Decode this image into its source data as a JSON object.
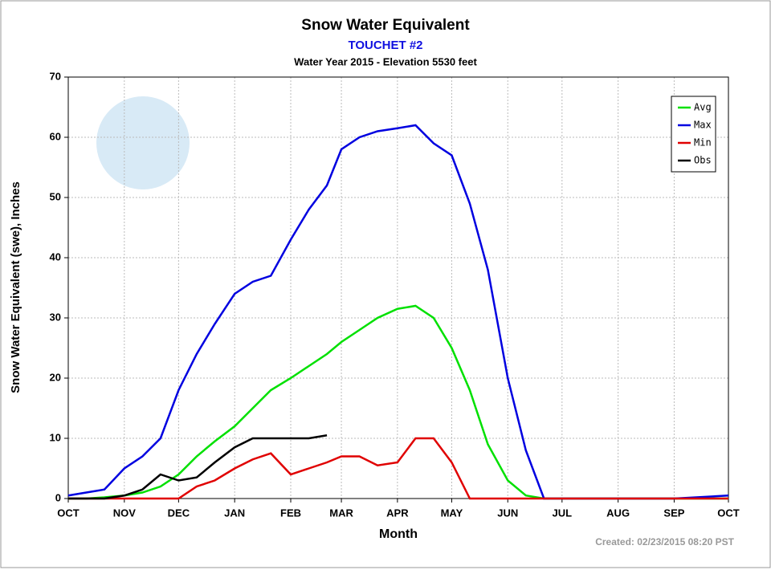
{
  "chart_data": {
    "type": "line",
    "title": "Snow Water Equivalent",
    "subtitle": "TOUCHET #2",
    "subtitle2": "Water Year 2015 -  Elevation 5530 feet",
    "x_label": "Month",
    "y_label": "Snow Water Equivalent (swe),  Inches",
    "footnote": "Created: 02/23/2015 08:20 PST",
    "x": [
      0,
      10,
      20,
      31,
      41,
      51,
      61,
      71,
      81,
      92,
      102,
      112,
      123,
      133,
      143,
      151,
      161,
      171,
      182,
      192,
      202,
      212,
      222,
      232,
      243,
      253,
      263,
      273,
      304,
      335,
      365
    ],
    "xlim": [
      0,
      365
    ],
    "xticks": [
      {
        "value": 0,
        "label": "OCT"
      },
      {
        "value": 31,
        "label": "NOV"
      },
      {
        "value": 61,
        "label": "DEC"
      },
      {
        "value": 92,
        "label": "JAN"
      },
      {
        "value": 123,
        "label": "FEB"
      },
      {
        "value": 151,
        "label": "MAR"
      },
      {
        "value": 182,
        "label": "APR"
      },
      {
        "value": 212,
        "label": "MAY"
      },
      {
        "value": 243,
        "label": "JUN"
      },
      {
        "value": 273,
        "label": "JUL"
      },
      {
        "value": 304,
        "label": "AUG"
      },
      {
        "value": 335,
        "label": "SEP"
      },
      {
        "value": 365,
        "label": "OCT"
      }
    ],
    "ylim": [
      0,
      70
    ],
    "yticks": [
      0,
      10,
      20,
      30,
      40,
      50,
      60,
      70
    ],
    "grid": true,
    "legend": "upper right",
    "series": [
      {
        "name": "Avg",
        "color": "#00e000",
        "values": [
          0,
          0,
          0.2,
          0.5,
          1,
          2,
          4,
          7,
          9.5,
          12,
          15,
          18,
          20,
          22,
          24,
          26,
          28,
          30,
          31.5,
          32,
          30,
          25,
          18,
          9,
          3,
          0.5,
          0,
          0,
          0,
          0,
          0
        ]
      },
      {
        "name": "Max",
        "color": "#0000e0",
        "values": [
          0.5,
          1,
          1.5,
          5,
          7,
          10,
          18,
          24,
          29,
          34,
          36,
          37,
          43,
          48,
          52,
          58,
          60,
          61,
          61.5,
          62,
          59,
          57,
          49,
          38,
          20,
          8,
          0,
          0,
          0,
          0,
          0.5
        ]
      },
      {
        "name": "Min",
        "color": "#e00000",
        "values": [
          0,
          0,
          0,
          0,
          0,
          0,
          0,
          2,
          3,
          5,
          6.5,
          7.5,
          4,
          5,
          6,
          7,
          7,
          5.5,
          6,
          10,
          10,
          6,
          0,
          0,
          0,
          0,
          0,
          0,
          0,
          0,
          0
        ]
      },
      {
        "name": "Obs",
        "color": "#000000",
        "values": [
          0,
          0,
          0,
          0.5,
          1.5,
          4,
          3,
          3.5,
          6,
          8.5,
          10,
          10,
          10,
          10,
          10.5,
          null,
          null,
          null,
          null,
          null,
          null,
          null,
          null,
          null,
          null,
          null,
          null,
          null,
          null,
          null,
          null
        ]
      }
    ]
  }
}
